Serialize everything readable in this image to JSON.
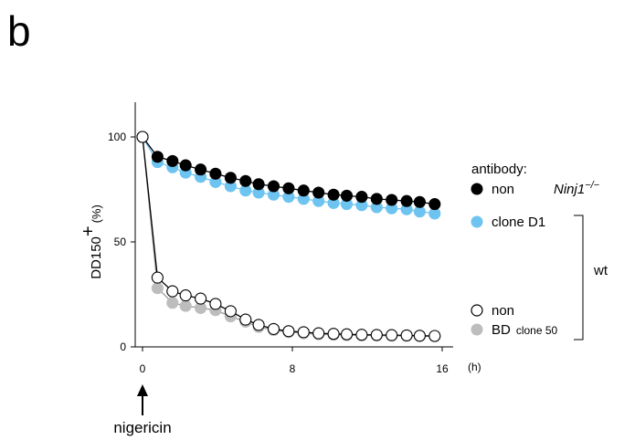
{
  "figure": {
    "panel_label": "b",
    "annotation": "nigericin",
    "group_label": "wt",
    "genotype_label": "Ninj1",
    "genotype_sup": "−/−"
  },
  "chart_data": {
    "type": "line",
    "ylabel_main": "DD150",
    "ylabel_sup": "+",
    "ylabel_unit": "(%)",
    "xlabel_unit": "(h)",
    "x_ticks": [
      "0",
      "8",
      "16"
    ],
    "y_ticks": [
      "0",
      "50",
      "100"
    ],
    "xlim": [
      0,
      16
    ],
    "ylim": [
      0,
      100
    ],
    "grid": false,
    "legend": {
      "title": "antibody:",
      "placement": "right",
      "entries": [
        {
          "label": "non",
          "sub": "",
          "fill": "#000000",
          "stroke": "#000000"
        },
        {
          "label": "clone D1",
          "sub": "",
          "fill": "#6ec4f0",
          "stroke": "#6ec4f0"
        },
        {
          "label": "non",
          "sub": "",
          "fill": "#ffffff",
          "stroke": "#000000"
        },
        {
          "label": "BD",
          "sub": "clone 50",
          "fill": "#bdbdbd",
          "stroke": "#bdbdbd"
        }
      ]
    },
    "x": [
      0,
      0.8,
      1.6,
      2.3,
      3.1,
      3.9,
      4.7,
      5.5,
      6.2,
      7.0,
      7.8,
      8.6,
      9.4,
      10.2,
      10.9,
      11.7,
      12.5,
      13.3,
      14.1,
      14.8,
      15.6
    ],
    "series": [
      {
        "legend_index": 3,
        "fill": "#bdbdbd",
        "stroke": "#bdbdbd",
        "line": "#9a9a9a",
        "values": [
          100,
          28,
          21,
          19.5,
          18.5,
          17.5,
          14.5,
          12,
          9.5,
          8,
          7,
          6.5,
          6,
          5.8,
          5.6,
          5.5,
          5.4,
          5.3,
          5.2,
          5.1,
          5
        ]
      },
      {
        "legend_index": 1,
        "fill": "#6ec4f0",
        "stroke": "#6ec4f0",
        "line": "#6ec4f0",
        "values": [
          100,
          88,
          85.5,
          83,
          81,
          78.5,
          76.5,
          74.5,
          73.5,
          72.5,
          71.5,
          70.5,
          69.5,
          68.5,
          68,
          67.5,
          66.5,
          66,
          65.5,
          64.5,
          63.5
        ]
      },
      {
        "legend_index": 0,
        "fill": "#000000",
        "stroke": "#000000",
        "line": "#000000",
        "values": [
          100,
          90.5,
          88.5,
          86.5,
          84.5,
          82.5,
          80.5,
          79,
          77.5,
          76.5,
          75.5,
          74.5,
          73.5,
          72.5,
          72,
          71.5,
          70.5,
          70,
          69.5,
          69,
          68
        ]
      },
      {
        "legend_index": 2,
        "fill": "#ffffff",
        "stroke": "#000000",
        "line": "#000000",
        "values": [
          100,
          33,
          26.5,
          24.5,
          23,
          20.5,
          17,
          13,
          10.5,
          8.5,
          7.5,
          7,
          6.5,
          6.2,
          6,
          5.8,
          5.7,
          5.6,
          5.5,
          5.3,
          5.2
        ]
      }
    ]
  }
}
